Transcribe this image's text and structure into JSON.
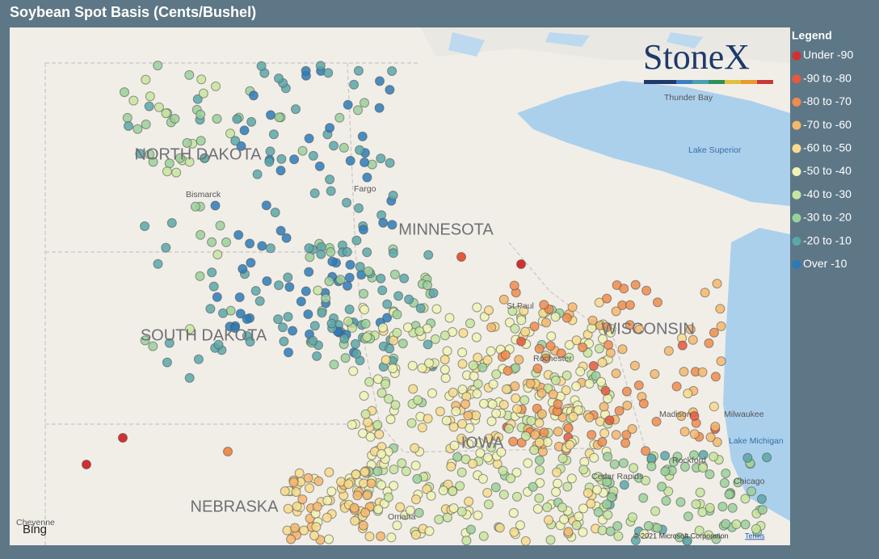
{
  "title": "Soybean Spot Basis (Cents/Bushel)",
  "legend": {
    "title": "Legend",
    "items": [
      {
        "label": "Under -90",
        "color": "#d42f2f"
      },
      {
        "label": "-90 to -80",
        "color": "#e8583a"
      },
      {
        "label": "-80 to -70",
        "color": "#f08c4c"
      },
      {
        "label": "-70 to -60",
        "color": "#f6b76c"
      },
      {
        "label": "-60 to -50",
        "color": "#f8db8c"
      },
      {
        "label": "-50 to -40",
        "color": "#f0f3b4"
      },
      {
        "label": "-40 to -30",
        "color": "#c8e59e"
      },
      {
        "label": "-30 to -20",
        "color": "#9bd09a"
      },
      {
        "label": "-20 to -10",
        "color": "#5aa7a9"
      },
      {
        "label": "Over -10",
        "color": "#2c7bb8"
      }
    ]
  },
  "logo": "StoneX",
  "map_labels": {
    "states": [
      "NORTH DAKOTA",
      "SOUTH DAKOTA",
      "MINNESOTA",
      "WISCONSIN",
      "NEBRASKA",
      "IOWA"
    ],
    "places": [
      "Thunder Bay",
      "Lake Superior",
      "Bismarck",
      "Fargo",
      "St Paul",
      "Rochester",
      "Madison",
      "Milwaukee",
      "Lake Michigan",
      "Rockford",
      "Cedar Rapids",
      "Chicago",
      "Omaha",
      "Cheyenne"
    ]
  },
  "provider": "Bing",
  "attribution": {
    "copyright": "© 2021 Microsoft Corporation",
    "terms": "Terms"
  }
}
